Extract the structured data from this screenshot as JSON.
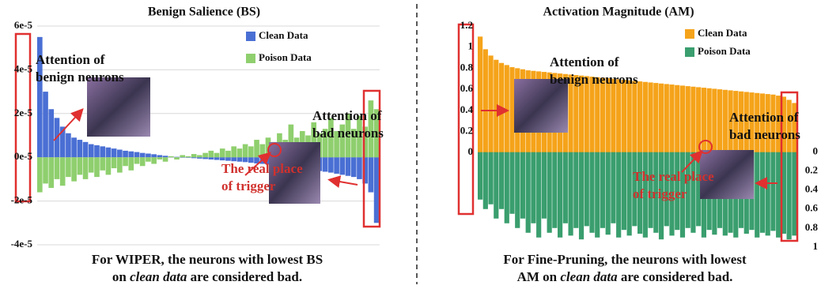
{
  "chart_data": [
    {
      "type": "bar",
      "title": "Benign Salience (BS)",
      "categories_count": 60,
      "series": [
        {
          "name": "Clean Data",
          "color": "#4a6fd4",
          "values": [
            5.5e-05,
            3e-05,
            2.2e-05,
            1.8e-05,
            1.4e-05,
            1.1e-05,
            9e-06,
            8e-06,
            7e-06,
            6e-06,
            5.5e-06,
            5e-06,
            4.5e-06,
            4e-06,
            3.5e-06,
            3e-06,
            2.7e-06,
            2.4e-06,
            2e-06,
            1.7e-06,
            1.4e-06,
            1e-06,
            7e-07,
            4e-07,
            2e-07,
            0,
            -2e-07,
            -4e-07,
            -6e-07,
            -8e-07,
            -1e-06,
            -1.2e-06,
            -1.4e-06,
            -1.6e-06,
            -1.8e-06,
            -2e-06,
            -2.2e-06,
            -2.5e-06,
            -2.8e-06,
            -3e-06,
            -3.3e-06,
            -3.6e-06,
            -4e-06,
            -4.3e-06,
            -4.6e-06,
            -5e-06,
            -5.3e-06,
            -5.6e-06,
            -6e-06,
            -6.3e-06,
            -6.6e-06,
            -7e-06,
            -7.5e-06,
            -8e-06,
            -8.5e-06,
            -9e-06,
            -1e-05,
            -1.2e-05,
            -1.6e-05,
            -3e-05
          ]
        },
        {
          "name": "Poison Data",
          "color": "#8fcf6e",
          "values": [
            -1.6e-05,
            -1.2e-05,
            -1.4e-05,
            -1e-05,
            -1.3e-05,
            -9e-06,
            -1.1e-05,
            -8e-06,
            -1e-05,
            -7e-06,
            -9e-06,
            -6e-06,
            -8e-06,
            -5e-06,
            -7e-06,
            -4e-06,
            -6e-06,
            -3e-06,
            -4e-06,
            -2e-06,
            -3e-06,
            -1e-06,
            -2e-06,
            5e-07,
            -1e-06,
            1e-06,
            5e-07,
            1.5e-06,
            1e-06,
            2e-06,
            3e-06,
            2e-06,
            4e-06,
            3e-06,
            5e-06,
            4e-06,
            6e-06,
            5e-06,
            8e-06,
            6e-06,
            9e-06,
            7e-06,
            1.1e-05,
            8e-06,
            1.5e-05,
            9e-06,
            1.2e-05,
            1e-05,
            1.6e-05,
            1.1e-05,
            1.3e-05,
            1.8e-05,
            1.2e-05,
            1.5e-05,
            2e-05,
            1.3e-05,
            1.9e-05,
            1.4e-05,
            2.6e-05,
            2.2e-05
          ]
        }
      ],
      "ylim": [
        -4e-05,
        6e-05
      ],
      "yticks": [
        {
          "value": 6e-05,
          "label": "6e-5"
        },
        {
          "value": 4e-05,
          "label": "4e-5"
        },
        {
          "value": 2e-05,
          "label": "2e-5"
        },
        {
          "value": 0,
          "label": "0e-5"
        },
        {
          "value": -2e-05,
          "label": "-2e-5"
        },
        {
          "value": -4e-05,
          "label": "-4e-5"
        }
      ],
      "grid": true,
      "annotations": [
        {
          "lines": [
            "Attention of",
            "benign neurons"
          ]
        },
        {
          "lines": [
            "Attention of",
            "bad neurons"
          ]
        },
        {
          "lines": [
            "The real place",
            "of trigger"
          ],
          "color": "#d0312d"
        }
      ],
      "caption": {
        "line1": "For WIPER, the neurons with lowest BS",
        "line2": [
          "on ",
          "clean data",
          " are considered bad."
        ]
      }
    },
    {
      "type": "bar",
      "title": "Activation Magnitude (AM)",
      "series": [
        {
          "name": "Clean Data",
          "color": "#f5a31a",
          "values": [
            1.1,
            0.98,
            0.92,
            0.88,
            0.85,
            0.83,
            0.81,
            0.8,
            0.79,
            0.78,
            0.775,
            0.77,
            0.765,
            0.76,
            0.755,
            0.75,
            0.745,
            0.74,
            0.735,
            0.73,
            0.725,
            0.72,
            0.715,
            0.71,
            0.705,
            0.7,
            0.695,
            0.69,
            0.685,
            0.68,
            0.675,
            0.67,
            0.665,
            0.66,
            0.655,
            0.65,
            0.645,
            0.64,
            0.635,
            0.63,
            0.625,
            0.62,
            0.615,
            0.61,
            0.605,
            0.6,
            0.595,
            0.59,
            0.585,
            0.58,
            0.575,
            0.57,
            0.565,
            0.56,
            0.555,
            0.55,
            0.54,
            0.53,
            0.5,
            0.47
          ]
        },
        {
          "name": "Poison Data",
          "color": "#3a9e6e",
          "axis": "y2",
          "values": [
            0.5,
            0.6,
            0.55,
            0.7,
            0.6,
            0.75,
            0.65,
            0.8,
            0.7,
            0.85,
            0.75,
            0.9,
            0.7,
            0.85,
            0.8,
            0.9,
            0.75,
            0.88,
            0.8,
            0.92,
            0.78,
            0.85,
            0.9,
            0.8,
            0.87,
            0.75,
            0.9,
            0.82,
            0.88,
            0.78,
            0.86,
            0.9,
            0.8,
            0.85,
            0.92,
            0.78,
            0.88,
            0.82,
            0.9,
            0.8,
            0.85,
            0.78,
            0.9,
            0.82,
            0.87,
            0.8,
            0.88,
            0.85,
            0.9,
            0.8,
            0.86,
            0.82,
            0.9,
            0.85,
            0.88,
            0.83,
            0.9,
            0.86,
            0.92,
            0.88
          ]
        }
      ],
      "ylim": [
        -0.95,
        1.2
      ],
      "yticks": [
        0,
        0.2,
        0.4,
        0.6,
        0.8,
        1,
        1.2
      ],
      "y2lim": [
        1.06,
        -1.33
      ],
      "y2ticks": [
        0,
        0.2,
        0.4,
        0.6,
        0.8,
        1
      ],
      "grid": false,
      "annotations": [
        {
          "lines": [
            "Attention of",
            "benign neurons"
          ]
        },
        {
          "lines": [
            "Attention of",
            "bad neurons"
          ]
        },
        {
          "lines": [
            "The real place",
            "of trigger"
          ],
          "color": "#d0312d"
        }
      ],
      "caption": {
        "line1": "For Fine-Pruning, the neurons with lowest",
        "line2": [
          "AM on ",
          "clean data",
          " are considered bad."
        ]
      }
    }
  ]
}
